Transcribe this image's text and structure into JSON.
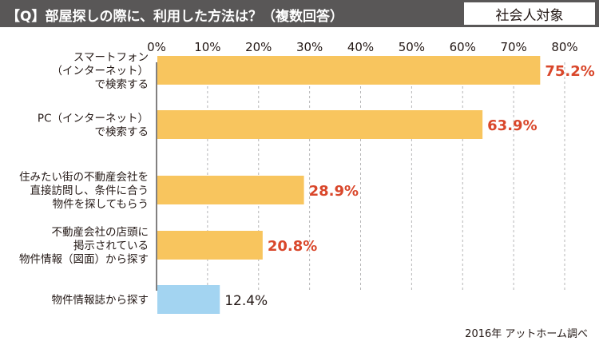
{
  "header": {
    "question": "【Q】部屋探しの際に、利用した方法は？（複数回答）",
    "audience": "社会人対象"
  },
  "source": "2016年 アットホーム調べ",
  "colors": {
    "header_bg": "#595757",
    "bar_primary": "#F8C55E",
    "bar_secondary": "#A3D4F1",
    "highlight_label": "#D9472B",
    "normal_label": "#231815",
    "gridline": "#B5B5B6"
  },
  "chart_data": {
    "type": "bar",
    "orientation": "horizontal",
    "title": "",
    "xlabel": "",
    "ylabel": "",
    "xlim": [
      0,
      80
    ],
    "x_ticks": [
      "0%",
      "10%",
      "20%",
      "30%",
      "40%",
      "50%",
      "60%",
      "70%",
      "80%"
    ],
    "grid": true,
    "categories": [
      [
        "スマートフォン",
        "（インターネット）",
        "で検索する"
      ],
      [
        "PC（インターネット）",
        "で検索する"
      ],
      [
        "住みたい街の不動産会社を",
        "直接訪問し、条件に合う",
        "物件を探してもらう"
      ],
      [
        "不動産会社の店頭に",
        "掲示されている",
        "物件情報（図面）から探す"
      ],
      [
        "物件情報誌から探す"
      ]
    ],
    "values": [
      75.2,
      63.9,
      28.9,
      20.8,
      12.4
    ],
    "value_labels": [
      "75.2%",
      "63.9%",
      "28.9%",
      "20.8%",
      "12.4%"
    ],
    "highlighted": [
      true,
      true,
      true,
      true,
      false
    ]
  }
}
